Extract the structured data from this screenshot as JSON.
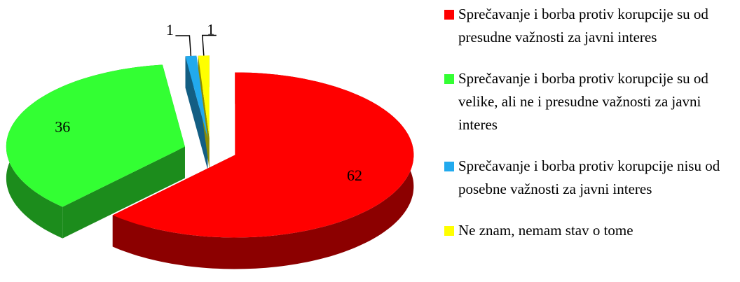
{
  "chart_data": {
    "type": "pie3d",
    "categories": [
      "Sprečavanje i borba protiv korupcije su od presudne važnosti za javni interes",
      "Sprečavanje i borba protiv korupcije su od velike, ali ne i presudne važnosti za javni interes",
      "Sprečavanje i borba protiv korupcije nisu od posebne važnosti za javni interes",
      "Ne znam, nemam stav o tome"
    ],
    "values": [
      62,
      36,
      1,
      1
    ],
    "colors": [
      "#ff0000",
      "#33ff33",
      "#22aaee",
      "#ffff00"
    ],
    "legend": "right"
  }
}
